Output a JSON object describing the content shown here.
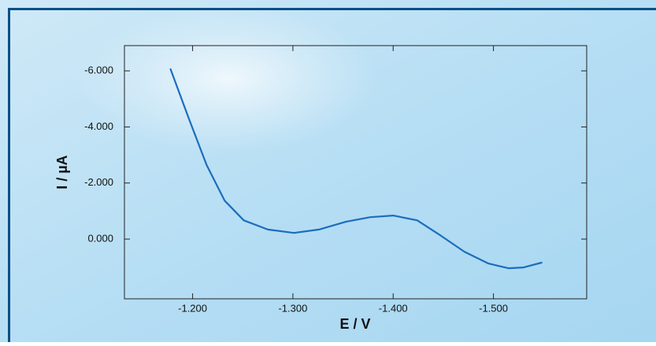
{
  "chart_data": {
    "type": "line",
    "xlabel": "E / V",
    "ylabel": "I / µA",
    "x": [
      -1.178,
      -1.196,
      -1.214,
      -1.232,
      -1.251,
      -1.275,
      -1.301,
      -1.326,
      -1.353,
      -1.377,
      -1.4,
      -1.424,
      -1.448,
      -1.471,
      -1.495,
      -1.515,
      -1.53,
      -1.548
    ],
    "values": [
      -6.06,
      -4.32,
      -2.64,
      -1.37,
      -0.67,
      -0.34,
      -0.22,
      -0.34,
      -0.62,
      -0.78,
      -0.84,
      -0.67,
      -0.11,
      0.45,
      0.87,
      1.04,
      1.01,
      0.84
    ],
    "color": "#1c6dbd",
    "xlim": [
      -1.132,
      -1.593
    ],
    "ylim": [
      2.13,
      -6.9
    ],
    "xticks": [
      {
        "value": -1.2,
        "label": "-1.200"
      },
      {
        "value": -1.3,
        "label": "-1.300"
      },
      {
        "value": -1.4,
        "label": "-1.400"
      },
      {
        "value": -1.5,
        "label": "-1.500"
      }
    ],
    "yticks": [
      {
        "value": 0,
        "label": "0.000"
      },
      {
        "value": -2,
        "label": "-2.000"
      },
      {
        "value": -4,
        "label": "-4.000"
      },
      {
        "value": -6,
        "label": "-6.000"
      }
    ]
  }
}
